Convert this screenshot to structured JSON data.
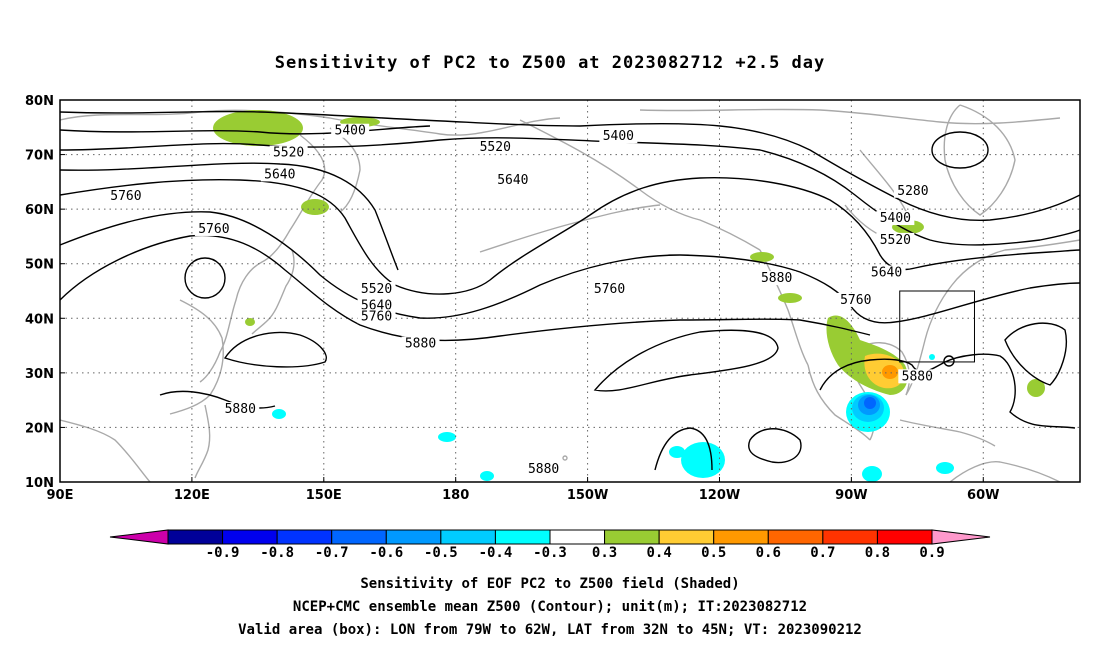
{
  "title": "Sensitivity of PC2 to Z500 at 2023082712 +2.5 day",
  "map": {
    "lon_ticks": [
      "90E",
      "120E",
      "150E",
      "180",
      "150W",
      "120W",
      "90W",
      "60W"
    ],
    "lat_ticks": [
      "80N",
      "70N",
      "60N",
      "50N",
      "40N",
      "30N",
      "20N",
      "10N"
    ],
    "lon_range_deg_east": [
      90,
      322
    ],
    "lat_range": [
      10,
      80
    ],
    "gridlines": true,
    "valid_box": {
      "lon_from": "79W",
      "lon_to": "62W",
      "lat_from": "32N",
      "lat_to": "45N"
    },
    "contour_labels": [
      {
        "text": "5400",
        "lon": 156,
        "lat": 74
      },
      {
        "text": "5520",
        "lon": 142,
        "lat": 70
      },
      {
        "text": "5640",
        "lon": 140,
        "lat": 66
      },
      {
        "text": "5760",
        "lon": 105,
        "lat": 62
      },
      {
        "text": "5760",
        "lon": 125,
        "lat": 56
      },
      {
        "text": "5520",
        "lon": 189,
        "lat": 71
      },
      {
        "text": "5400",
        "lon": 217,
        "lat": 73
      },
      {
        "text": "5640",
        "lon": 193,
        "lat": 65
      },
      {
        "text": "5280",
        "lon": 284,
        "lat": 63
      },
      {
        "text": "5400",
        "lon": 280,
        "lat": 58
      },
      {
        "text": "5520",
        "lon": 280,
        "lat": 54
      },
      {
        "text": "5640",
        "lon": 278,
        "lat": 48
      },
      {
        "text": "5760",
        "lon": 271,
        "lat": 43
      },
      {
        "text": "5880",
        "lon": 253,
        "lat": 47
      },
      {
        "text": "5760",
        "lon": 215,
        "lat": 45
      },
      {
        "text": "5520",
        "lon": 162,
        "lat": 45
      },
      {
        "text": "5640",
        "lon": 162,
        "lat": 42
      },
      {
        "text": "5760",
        "lon": 162,
        "lat": 40
      },
      {
        "text": "5880",
        "lon": 172,
        "lat": 35
      },
      {
        "text": "5880",
        "lon": 285,
        "lat": 29
      },
      {
        "text": "5880",
        "lon": 131,
        "lat": 23
      },
      {
        "text": "5880",
        "lon": 200,
        "lat": 12
      }
    ]
  },
  "colorbar": {
    "labels": [
      "-0.9",
      "-0.8",
      "-0.7",
      "-0.6",
      "-0.5",
      "-0.4",
      "-0.3",
      "0.3",
      "0.4",
      "0.5",
      "0.6",
      "0.7",
      "0.8",
      "0.9"
    ],
    "colors": [
      "#000099",
      "#0000ee",
      "#0033ff",
      "#0066ff",
      "#0099ff",
      "#00ccff",
      "#00ffff",
      "#ffffff",
      "#99cc33",
      "#ffcc33",
      "#ff9900",
      "#ff6600",
      "#ff3300",
      "#ff0000"
    ],
    "low_extension_color": "#cc00aa",
    "high_extension_color": "#ff99cc"
  },
  "colors": {
    "coast": "#a9a9a9",
    "contour": "#000000",
    "grid": "#666666"
  },
  "caption": {
    "line1": "Sensitivity of EOF PC2 to Z500 field (Shaded)",
    "line2": "NCEP+CMC ensemble mean Z500 (Contour); unit(m); IT:2023082712",
    "line3": "Valid area (box): LON from 79W to 62W, LAT from 32N to 45N; VT: 2023090212"
  }
}
